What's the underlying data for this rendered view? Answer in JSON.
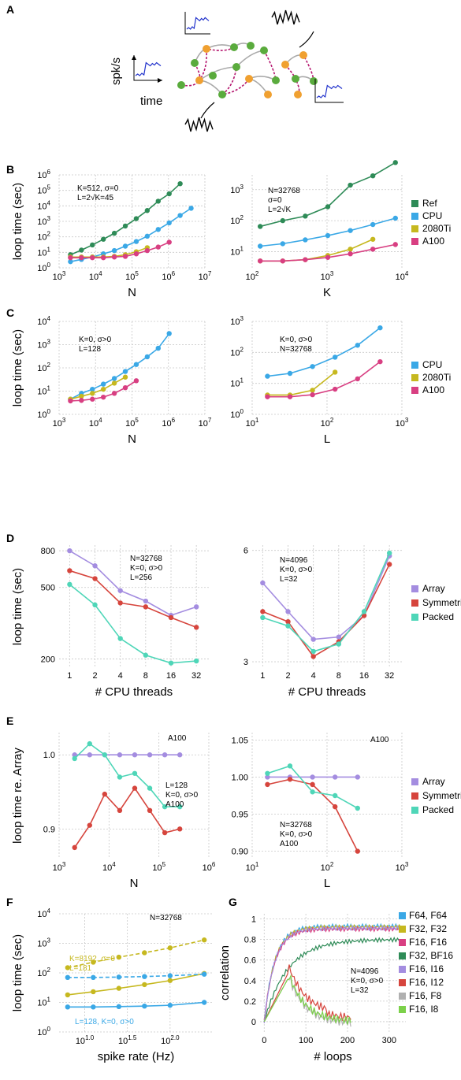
{
  "panel_labels": [
    "A",
    "B",
    "C",
    "D",
    "E",
    "F",
    "G"
  ],
  "panelA": {
    "ylabel": "spk/s",
    "xlabel": "time"
  },
  "colors": {
    "ref": "#2e8b57",
    "cpu": "#3aa8e6",
    "gpu2080": "#c6b81f",
    "a100": "#d83f82",
    "array": "#a48de0",
    "symmetric": "#d6453d",
    "packed": "#4fd6b8",
    "excitatory": "#5aab3d",
    "inhibitory": "#f0a030",
    "arrow_exc": "#a9a9a9",
    "arrow_inh": "#b5166f"
  },
  "legends": {
    "B": [
      "Ref",
      "CPU",
      "2080Ti",
      "A100"
    ],
    "C": [
      "CPU",
      "2080Ti",
      "A100"
    ],
    "D": [
      "Array",
      "Symmetric",
      "Packed"
    ],
    "E": [
      "Array",
      "Symmetric",
      "Packed"
    ],
    "G": [
      "F64, F64",
      "F32, F32",
      "F16, F16",
      "F32, BF16",
      "F16, I16",
      "F16, I12",
      "F16, F8",
      "F16, I8"
    ]
  },
  "chart_data": [
    {
      "id": "B1",
      "type": "line",
      "xlabel": "N",
      "ylabel": "loop time (sec)",
      "xscale": "log",
      "yscale": "log",
      "xlim": [
        1000,
        10000000
      ],
      "ylim": [
        1,
        1000000
      ],
      "annotation": [
        "K=512, σ=0",
        "L=2√K=45"
      ],
      "series": [
        {
          "name": "Ref",
          "x": [
            2048,
            4096,
            8192,
            16384,
            32768,
            65536,
            131072,
            262144,
            524288,
            1048576,
            2097152
          ],
          "y": [
            7,
            14,
            30,
            70,
            170,
            500,
            1500,
            5000,
            20000,
            60000,
            270000
          ]
        },
        {
          "name": "CPU",
          "x": [
            2048,
            4096,
            8192,
            16384,
            32768,
            65536,
            131072,
            262144,
            524288,
            1048576,
            2097152,
            4194304
          ],
          "y": [
            2.5,
            3.5,
            5,
            8,
            13,
            25,
            50,
            110,
            300,
            800,
            2400,
            7000
          ]
        },
        {
          "name": "2080Ti",
          "x": [
            2048,
            4096,
            8192,
            16384,
            32768,
            65536,
            131072,
            262144
          ],
          "y": [
            5,
            5,
            5,
            5,
            5.5,
            7,
            11,
            20
          ]
        },
        {
          "name": "A100",
          "x": [
            2048,
            4096,
            8192,
            16384,
            32768,
            65536,
            131072,
            262144,
            524288,
            1048576
          ],
          "y": [
            4.5,
            4.5,
            4.5,
            4.5,
            5,
            5.5,
            8,
            13,
            22,
            45
          ]
        }
      ]
    },
    {
      "id": "B2",
      "type": "line",
      "xlabel": "K",
      "xscale": "log",
      "yscale": "log",
      "xlim": [
        100,
        10000
      ],
      "ylim": [
        3,
        3000
      ],
      "annotation": [
        "N=32768",
        "σ=0",
        "L=2√K"
      ],
      "series": [
        {
          "name": "Ref",
          "x": [
            128,
            256,
            512,
            1024,
            2048,
            4096,
            8192
          ],
          "y": [
            65,
            100,
            140,
            280,
            1400,
            2800,
            7500
          ]
        },
        {
          "name": "CPU",
          "x": [
            128,
            256,
            512,
            1024,
            2048,
            4096,
            8192
          ],
          "y": [
            15,
            18,
            24,
            33,
            48,
            75,
            120
          ]
        },
        {
          "name": "2080Ti",
          "x": [
            128,
            256,
            512,
            1024,
            2048,
            4096
          ],
          "y": [
            5,
            5,
            5.5,
            7.5,
            12,
            25
          ]
        },
        {
          "name": "A100",
          "x": [
            128,
            256,
            512,
            1024,
            2048,
            4096,
            8192
          ],
          "y": [
            5,
            5,
            5.5,
            6.5,
            8.5,
            12,
            17
          ]
        }
      ]
    },
    {
      "id": "C1",
      "type": "line",
      "xlabel": "N",
      "ylabel": "loop time (sec)",
      "xscale": "log",
      "yscale": "log",
      "xlim": [
        1000,
        10000000
      ],
      "ylim": [
        1,
        10000
      ],
      "annotation": [
        "K=0, σ>0",
        "L=128"
      ],
      "series": [
        {
          "name": "CPU",
          "x": [
            2048,
            4096,
            8192,
            16384,
            32768,
            65536,
            131072,
            262144,
            524288,
            1048576
          ],
          "y": [
            4.5,
            8,
            12,
            20,
            35,
            70,
            140,
            300,
            700,
            3000
          ]
        },
        {
          "name": "2080Ti",
          "x": [
            2048,
            4096,
            8192,
            16384,
            32768,
            65536
          ],
          "y": [
            4.5,
            6,
            8,
            12,
            22,
            40
          ]
        },
        {
          "name": "A100",
          "x": [
            2048,
            4096,
            8192,
            16384,
            32768,
            65536,
            131072
          ],
          "y": [
            3.8,
            4,
            4.5,
            5.5,
            8,
            14,
            28
          ]
        }
      ]
    },
    {
      "id": "C2",
      "type": "line",
      "xlabel": "L",
      "xscale": "log",
      "yscale": "log",
      "xlim": [
        10,
        1000
      ],
      "ylim": [
        1,
        1000
      ],
      "annotation": [
        "K=0, σ>0",
        "N=32768"
      ],
      "series": [
        {
          "name": "CPU",
          "x": [
            16,
            32,
            64,
            128,
            256,
            512
          ],
          "y": [
            17,
            21,
            35,
            70,
            170,
            620
          ]
        },
        {
          "name": "2080Ti",
          "x": [
            16,
            32,
            64,
            128
          ],
          "y": [
            4.2,
            4.2,
            6,
            23
          ]
        },
        {
          "name": "A100",
          "x": [
            16,
            32,
            64,
            128,
            256,
            512
          ],
          "y": [
            3.7,
            3.7,
            4.3,
            6.5,
            14,
            50
          ]
        }
      ]
    },
    {
      "id": "D1",
      "type": "line",
      "xlabel": "# CPU threads",
      "ylabel": "loop time (sec)",
      "xscale": "log2",
      "yscale": "log",
      "xticks": [
        1,
        2,
        4,
        8,
        16,
        32
      ],
      "ylim": [
        180,
        860
      ],
      "yticks": [
        200,
        500,
        800
      ],
      "annotation": [
        "N=32768",
        "K=0, σ>0",
        "L=256"
      ],
      "series": [
        {
          "name": "Array",
          "x": [
            1,
            2,
            4,
            8,
            16,
            32
          ],
          "y": [
            800,
            660,
            480,
            420,
            350,
            390
          ]
        },
        {
          "name": "Symmetric",
          "x": [
            1,
            2,
            4,
            8,
            16,
            32
          ],
          "y": [
            620,
            560,
            410,
            390,
            340,
            300
          ]
        },
        {
          "name": "Packed",
          "x": [
            1,
            2,
            4,
            8,
            16,
            32
          ],
          "y": [
            520,
            400,
            260,
            210,
            190,
            195
          ]
        }
      ]
    },
    {
      "id": "D2",
      "type": "line",
      "xlabel": "# CPU threads",
      "xscale": "log2",
      "yscale": "log",
      "xticks": [
        1,
        2,
        4,
        8,
        16,
        32
      ],
      "ylim": [
        2.9,
        6.2
      ],
      "yticks": [
        3,
        6
      ],
      "annotation": [
        "N=4096",
        "K=0, σ>0",
        "L=32"
      ],
      "series": [
        {
          "name": "Array",
          "x": [
            1,
            2,
            4,
            8,
            16,
            32
          ],
          "y": [
            4.9,
            4.1,
            3.45,
            3.5,
            4.0,
            5.8
          ]
        },
        {
          "name": "Symmetric",
          "x": [
            1,
            2,
            4,
            8,
            16,
            32
          ],
          "y": [
            4.1,
            3.85,
            3.1,
            3.4,
            4.0,
            5.5
          ]
        },
        {
          "name": "Packed",
          "x": [
            1,
            2,
            4,
            8,
            16,
            32
          ],
          "y": [
            3.95,
            3.75,
            3.2,
            3.35,
            4.1,
            5.9
          ]
        }
      ]
    },
    {
      "id": "E1",
      "type": "line",
      "xlabel": "N",
      "ylabel": "loop time re. Array",
      "xscale": "log",
      "yscale": "linear",
      "xlim": [
        1000,
        1000000
      ],
      "ylim": [
        0.86,
        1.03
      ],
      "yticks": [
        0.9,
        1.0
      ],
      "annotation": [
        "A100",
        "L=128",
        "K=0, σ>0",
        "A100"
      ],
      "series": [
        {
          "name": "Array",
          "x": [
            2048,
            4096,
            8192,
            16384,
            32768,
            65536,
            131072,
            262144
          ],
          "y": [
            1.0,
            1.0,
            1.0,
            1.0,
            1.0,
            1.0,
            1.0,
            1.0
          ]
        },
        {
          "name": "Symmetric",
          "x": [
            2048,
            4096,
            8192,
            16384,
            32768,
            65536,
            131072,
            262144
          ],
          "y": [
            0.875,
            0.905,
            0.947,
            0.925,
            0.955,
            0.925,
            0.895,
            0.9
          ]
        },
        {
          "name": "Packed",
          "x": [
            2048,
            4096,
            8192,
            16384,
            32768,
            65536,
            131072,
            262144
          ],
          "y": [
            0.995,
            1.015,
            1.0,
            0.97,
            0.975,
            0.955,
            0.93,
            0.93
          ]
        }
      ]
    },
    {
      "id": "E2",
      "type": "line",
      "xlabel": "L",
      "xscale": "log",
      "yscale": "linear",
      "xlim": [
        10,
        1000
      ],
      "ylim": [
        0.89,
        1.06
      ],
      "yticks": [
        0.9,
        0.95,
        1.0,
        1.05
      ],
      "annotation": [
        "A100",
        "N=32768",
        "K=0, σ>0",
        "A100"
      ],
      "series": [
        {
          "name": "Array",
          "x": [
            16,
            32,
            64,
            128,
            256
          ],
          "y": [
            1.0,
            1.0,
            1.0,
            1.0,
            1.0
          ]
        },
        {
          "name": "Symmetric",
          "x": [
            16,
            32,
            64,
            128,
            256
          ],
          "y": [
            0.99,
            0.997,
            0.99,
            0.96,
            0.9
          ]
        },
        {
          "name": "Packed",
          "x": [
            16,
            32,
            64,
            128,
            256
          ],
          "y": [
            1.005,
            1.015,
            0.98,
            0.975,
            0.958
          ]
        }
      ]
    },
    {
      "id": "F",
      "type": "line",
      "xlabel": "spike rate (Hz)",
      "ylabel": "loop time (sec)",
      "xscale": "log",
      "yscale": "log",
      "xlim_log10": [
        0.7,
        2.5
      ],
      "ylim": [
        1,
        10000
      ],
      "xtick_labels": [
        "10^1.0",
        "10^1.5",
        "10^2.0"
      ],
      "annotation": [
        "N=32768",
        "K=8192, σ=0",
        "L=181",
        "L=128, K=0, σ>0"
      ],
      "series": [
        {
          "name": "K=8192 dashed",
          "color": "gpu2080",
          "dash": true,
          "logx": [
            0.8,
            1.1,
            1.4,
            1.7,
            2.0,
            2.4
          ],
          "y": [
            150,
            230,
            340,
            480,
            700,
            1300
          ]
        },
        {
          "name": "K=8192 solid",
          "color": "gpu2080",
          "dash": false,
          "logx": [
            0.8,
            1.1,
            1.4,
            1.7,
            2.0,
            2.4
          ],
          "y": [
            18,
            23,
            30,
            40,
            55,
            95
          ]
        },
        {
          "name": "L=128 dashed",
          "color": "cpu",
          "dash": true,
          "logx": [
            0.8,
            1.1,
            1.4,
            1.7,
            2.0,
            2.4
          ],
          "y": [
            70,
            70,
            72,
            75,
            80,
            90
          ]
        },
        {
          "name": "L=128 solid",
          "color": "cpu",
          "dash": false,
          "logx": [
            0.8,
            1.1,
            1.4,
            1.7,
            2.0,
            2.4
          ],
          "y": [
            7,
            7,
            7.2,
            7.5,
            8,
            10
          ]
        }
      ]
    },
    {
      "id": "G",
      "type": "line",
      "xlabel": "# loops",
      "ylabel": "correlation",
      "xscale": "linear",
      "yscale": "linear",
      "xlim": [
        -10,
        340
      ],
      "ylim": [
        -0.1,
        1.05
      ],
      "xticks": [
        0,
        100,
        200,
        300
      ],
      "yticks": [
        0.0,
        0.2,
        0.4,
        0.6,
        0.8,
        1.0
      ],
      "annotation": [
        "N=4096",
        "K=0, σ>0",
        "L=32"
      ]
    }
  ]
}
